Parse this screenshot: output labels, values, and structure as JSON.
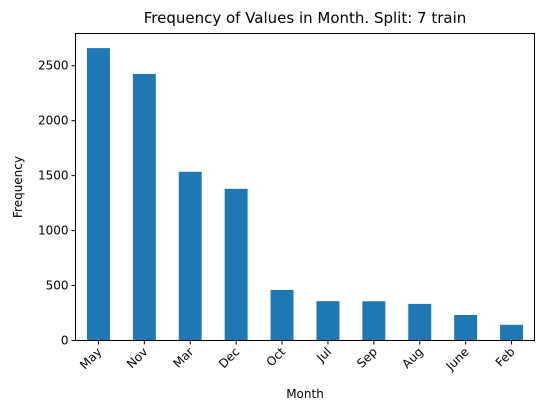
{
  "chart_data": {
    "type": "bar",
    "title": "Frequency of Values in Month. Split: 7 train",
    "xlabel": "Month",
    "ylabel": "Frequency",
    "categories": [
      "May",
      "Nov",
      "Mar",
      "Dec",
      "Oct",
      "Jul",
      "Sep",
      "Aug",
      "June",
      "Feb"
    ],
    "values": [
      2660,
      2425,
      1535,
      1380,
      460,
      358,
      357,
      333,
      232,
      143
    ],
    "ylim": [
      0,
      2793
    ],
    "yticks": [
      0,
      500,
      1000,
      1500,
      2000,
      2500
    ],
    "grid": false,
    "bar_color": "#1f77b4"
  }
}
